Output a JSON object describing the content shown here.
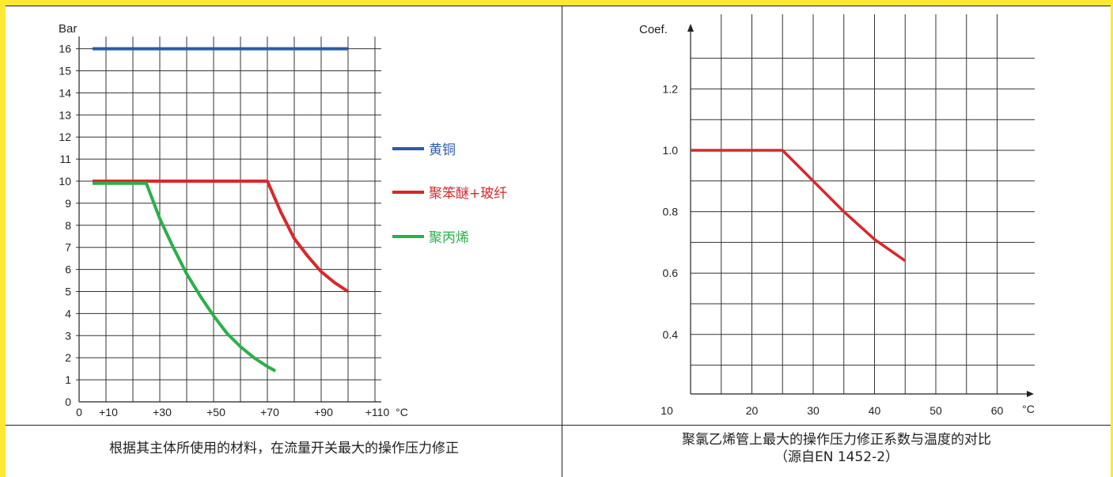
{
  "chart_data": [
    {
      "type": "line",
      "title": "",
      "ylabel": "Bar",
      "xlabel": "°C",
      "xlim": [
        0,
        115
      ],
      "ylim": [
        0,
        16.6
      ],
      "x_ticks": [
        {
          "value": 0,
          "label": "0"
        },
        {
          "value": 10,
          "label": "+10"
        },
        {
          "value": 30,
          "label": "+30"
        },
        {
          "value": 50,
          "label": "+50"
        },
        {
          "value": 70,
          "label": "+70"
        },
        {
          "value": 90,
          "label": "+90"
        },
        {
          "value": 110,
          "label": "+110"
        }
      ],
      "y_ticks": [
        "0",
        "1",
        "2",
        "3",
        "4",
        "5",
        "6",
        "7",
        "8",
        "9",
        "10",
        "11",
        "12",
        "13",
        "14",
        "15",
        "16"
      ],
      "grid": true,
      "legend_position": "right",
      "series": [
        {
          "name": "黄铜",
          "color": "#2a5ca8",
          "points": [
            [
              5,
              16
            ],
            [
              100,
              16
            ]
          ]
        },
        {
          "name": "聚笨醚+玻纤",
          "color": "#d8282c",
          "points": [
            [
              5,
              10
            ],
            [
              70,
              10
            ],
            [
              75,
              8.6
            ],
            [
              80,
              7.4
            ],
            [
              85,
              6.6
            ],
            [
              90,
              5.9
            ],
            [
              95,
              5.4
            ],
            [
              100,
              5.0
            ]
          ]
        },
        {
          "name": "聚丙烯",
          "color": "#2ab04a",
          "points": [
            [
              5,
              9.9
            ],
            [
              25,
              9.9
            ],
            [
              30,
              8.3
            ],
            [
              35,
              7.0
            ],
            [
              40,
              5.8
            ],
            [
              45,
              4.8
            ],
            [
              50,
              3.9
            ],
            [
              55,
              3.1
            ],
            [
              60,
              2.5
            ],
            [
              65,
              2.0
            ],
            [
              70,
              1.6
            ],
            [
              73,
              1.4
            ]
          ]
        }
      ]
    },
    {
      "type": "line",
      "title": "",
      "ylabel": "Coef.",
      "xlabel": "°C",
      "xlim": [
        10,
        65
      ],
      "ylim": [
        0.2,
        1.4
      ],
      "x_ticks": [
        "10",
        "20",
        "30",
        "40",
        "50",
        "60"
      ],
      "y_ticks": [
        "0.4",
        "0.6",
        "0.8",
        "1.0",
        "1.2"
      ],
      "grid": true,
      "series": [
        {
          "color": "#d8282c",
          "points": [
            [
              10,
              1.0
            ],
            [
              25,
              1.0
            ],
            [
              30,
              0.9
            ],
            [
              35,
              0.8
            ],
            [
              40,
              0.71
            ],
            [
              45,
              0.64
            ]
          ]
        }
      ]
    }
  ],
  "captions": {
    "left": "根据其主体所使用的材料，在流量开关最大的操作压力修正",
    "right_line1": "聚氯乙烯管上最大的操作压力修正系数与温度的对比",
    "right_line2": "（源自EN 1452-2）"
  }
}
